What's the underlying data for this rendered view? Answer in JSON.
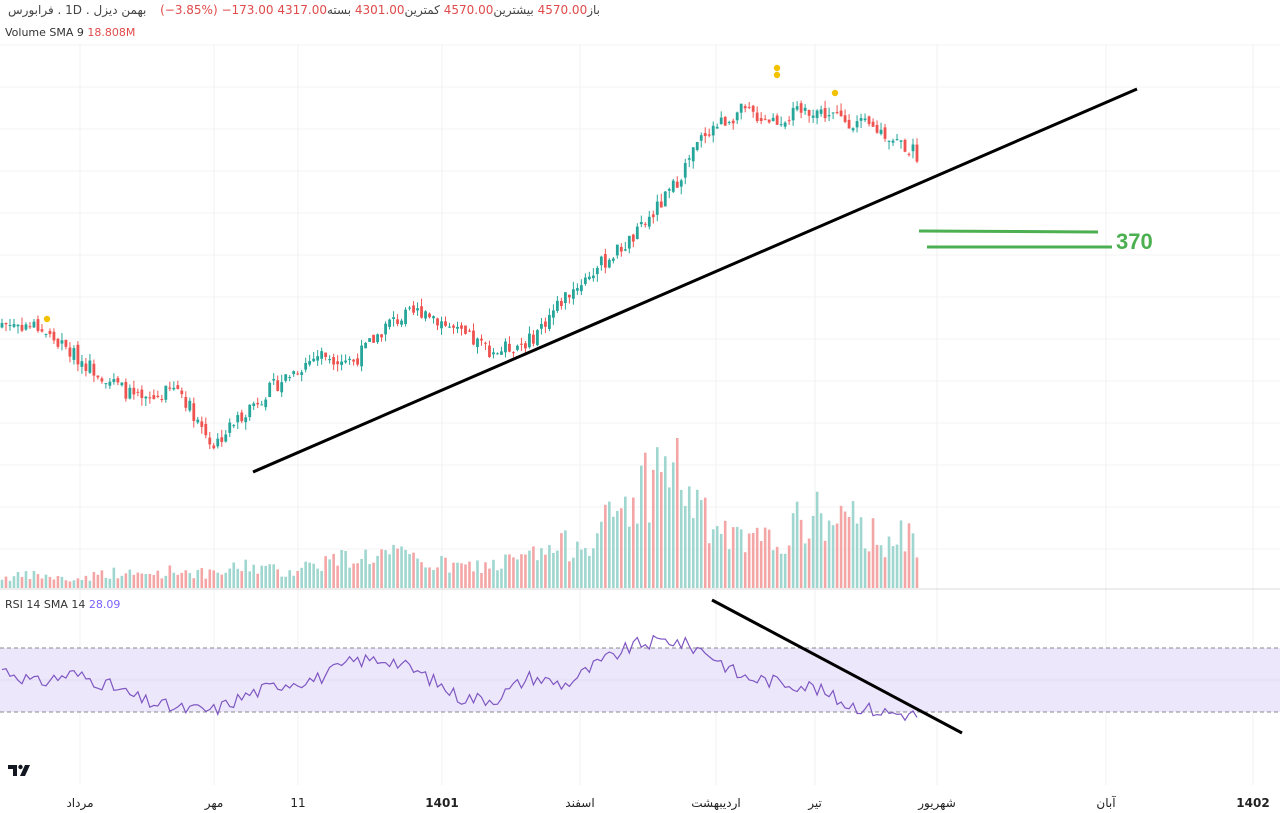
{
  "header": {
    "symbol": "بهمن دیزل",
    "timeframe": "1D",
    "exchange": "فرابورس",
    "open_label": "باز",
    "open": "4570.00",
    "high_label": "بیشترین",
    "high": "4570.00",
    "low_label": "کمترین",
    "low": "4301.00",
    "close_label": "بسته",
    "close": "4317.00",
    "change": "−173.00",
    "change_pct": "(−3.85%)"
  },
  "volume_legend": {
    "label": "Volume SMA 9",
    "value": "18.808M"
  },
  "rsi_legend": {
    "label": "RSI 14 SMA 14",
    "value": "28.09"
  },
  "annotation": {
    "level_text": "370"
  },
  "x_axis": [
    "مرداد",
    "مهر",
    "11",
    "1401",
    "اسفند",
    "اردیبهشت",
    "تیر",
    "شهریور",
    "آبان",
    "1402"
  ],
  "colors": {
    "up": "#26a69a",
    "down": "#ef5350",
    "rsi": "#7e57c2",
    "rsi_band": "#ede7fb",
    "trend": "#000000",
    "level": "#4caf50"
  },
  "chart_data": [
    {
      "type": "candlestick",
      "title": "",
      "price_path_approx": [
        3560,
        3545,
        3420,
        3310,
        3200,
        3270,
        3010,
        3180,
        3310,
        3420,
        3390,
        3560,
        3620,
        3510,
        3430,
        3480,
        3680,
        3820,
        3950,
        4150,
        4420,
        4510,
        4470,
        4520,
        4470,
        4420,
        4317
      ],
      "trendline": "rising support from the mid-Mehr low through the latest candle",
      "grid": true
    },
    {
      "type": "bar",
      "title": "Volume",
      "values_relative": [
        0.08,
        0.1,
        0.06,
        0.12,
        0.1,
        0.14,
        0.1,
        0.18,
        0.12,
        0.2,
        0.24,
        0.26,
        0.2,
        0.16,
        0.18,
        0.24,
        0.32,
        0.44,
        0.72,
        1.0,
        0.5,
        0.34,
        0.36,
        0.56,
        0.5,
        0.4,
        0.36
      ],
      "grid": false
    },
    {
      "type": "line",
      "title": "RSI 14",
      "values": [
        57,
        48,
        54,
        47,
        37,
        32,
        31,
        41,
        48,
        51,
        62,
        63,
        53,
        39,
        38,
        52,
        47,
        61,
        72,
        75,
        68,
        52,
        49,
        46,
        35,
        30,
        28
      ],
      "band": [
        30,
        70
      ],
      "trendline": "falling resistance from the April peak",
      "grid": true
    }
  ]
}
